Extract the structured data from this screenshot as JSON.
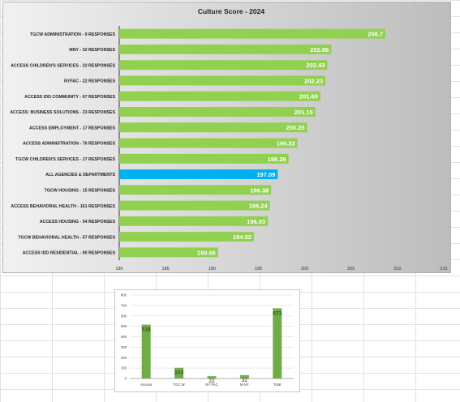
{
  "chart_data": [
    {
      "type": "bar",
      "orientation": "horizontal",
      "title": "Culture Score - 2024",
      "categories": [
        "TGCW ADMINISTRATION - 9 RESPONSES",
        "MNY - 32 RESPONSES",
        "ACCESS CHILDREN'S SERVICES - 22 RESPONSES",
        "NYFAC - 22 RESPONSES",
        "ACCESS IDD COMMUNITY - 67 RESPONSES",
        "ACCESS: BUSINESS SOLUTIONS - 23 RESPONSES",
        "ACCESS EMPLOYMENT - 17 RESPONSES",
        "ACCESS ADMINISTRATION - 76 RESPONSES",
        "TGCW CHILDREN'S SERVICES - 17 RESPONSES",
        "ALL AGENCIES & DEPARTMENTS",
        "TGCW HOUSING - 15 RESPONSES",
        "ACCESS BEHAVIORAL HEALTH - 161 RESPONSES",
        "ACCESS HOUSING - 54 RESPONSES",
        "TGCW BEHAVIORAL HEALTH - 57 RESPONSES",
        "ACCESS IDD RESIDENTIAL - 90 RESPONSES"
      ],
      "values": [
        208.7,
        202.86,
        202.43,
        202.23,
        201.69,
        201.15,
        200.25,
        199.22,
        198.26,
        197.09,
        196.38,
        196.24,
        196.03,
        194.52,
        190.66
      ],
      "value_labels": [
        "208.7",
        "202.86",
        "202.43",
        "202.23",
        "201.69",
        "201.15",
        "200.25",
        "199.22",
        "198.26",
        "197.09",
        "196.38",
        "196.24",
        "196.03",
        "194.52",
        "190.66"
      ],
      "highlight_index": 9,
      "xlim": [
        180,
        215
      ],
      "xticks": [
        "180",
        "185",
        "190",
        "195",
        "200",
        "205",
        "210",
        "215"
      ],
      "colors": {
        "bar": "#92d050",
        "highlight": "#00b0f0",
        "label": "#ffffff"
      },
      "grid": false,
      "legend": "none"
    },
    {
      "type": "bar",
      "categories": [
        "Access",
        "TGC W",
        "NY FAC",
        "M NY",
        "Total"
      ],
      "values": [
        516,
        103,
        22,
        32,
        673
      ],
      "value_labels": [
        "516",
        "103",
        "22",
        "32",
        "673"
      ],
      "ylim": [
        0,
        800
      ],
      "yticks": [
        "0",
        "100",
        "200",
        "300",
        "400",
        "500",
        "600",
        "700",
        "800"
      ],
      "colors": {
        "bar": "#70ad47"
      },
      "grid": true,
      "legend": "none"
    }
  ]
}
